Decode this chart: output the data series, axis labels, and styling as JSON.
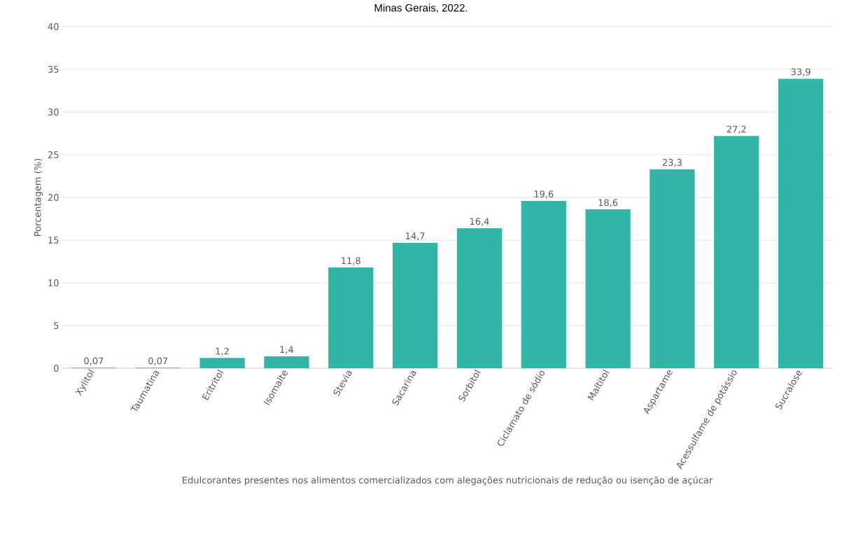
{
  "chart_data": {
    "type": "bar",
    "title": "Minas Gerais, 2022.",
    "xlabel": "Edulcorantes presentes nos alimentos comercializados com alegações nutricionais de redução ou isenção de açúcar",
    "ylabel": "Porcentagem (%)",
    "categories": [
      "Xylitol",
      "Taumatina",
      "Eritritol",
      "Isomalte",
      "Stevia",
      "Sacarina",
      "Sorbitol",
      "Ciclamato de sódio",
      "Maltitol",
      "Aspartame",
      "Acessulfame de potássio",
      "Sucralose"
    ],
    "values": [
      0.07,
      0.07,
      1.2,
      1.4,
      11.8,
      14.7,
      16.4,
      19.6,
      18.6,
      23.3,
      27.2,
      33.9
    ],
    "value_labels": [
      "0,07",
      "0,07",
      "1,2",
      "1,4",
      "11,8",
      "14,7",
      "16,4",
      "19,6",
      "18,6",
      "23,3",
      "27,2",
      "33,9"
    ],
    "color": "#33b5a8",
    "ylim": [
      0,
      40
    ],
    "yticks": [
      0,
      5,
      10,
      15,
      20,
      25,
      30,
      35,
      40
    ],
    "grid": "y"
  }
}
